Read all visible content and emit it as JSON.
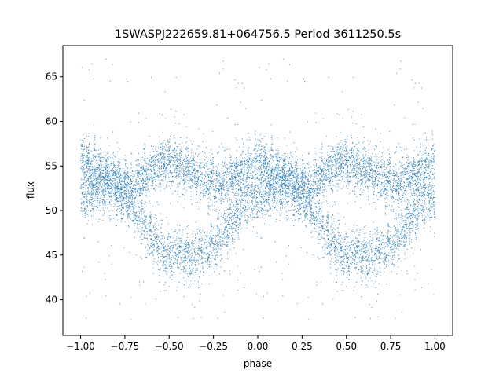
{
  "chart_data": {
    "type": "scatter",
    "title": "1SWASPJ222659.81+064756.5 Period 3611250.5s",
    "xlabel": "phase",
    "ylabel": "flux",
    "xlim": [
      -1.1,
      1.1
    ],
    "ylim": [
      36.0,
      68.5
    ],
    "xticks": [
      -1.0,
      -0.75,
      -0.5,
      -0.25,
      0.0,
      0.25,
      0.5,
      0.75,
      1.0
    ],
    "xtick_labels": [
      "−1.00",
      "−0.75",
      "−0.50",
      "−0.25",
      "0.00",
      "0.25",
      "0.50",
      "0.75",
      "1.00"
    ],
    "yticks": [
      40,
      45,
      50,
      55,
      60,
      65
    ],
    "ytick_labels": [
      "40",
      "45",
      "50",
      "55",
      "60",
      "65"
    ],
    "grid": false,
    "legend": "none",
    "marker_color": "#1f77b4",
    "series": [
      {
        "points_summary": "dense phase-folded light curve; each phase point mirrored at phase-1",
        "profile_phase": [
          0.0,
          0.05,
          0.1,
          0.15,
          0.2,
          0.25,
          0.3,
          0.35,
          0.4,
          0.45,
          0.5,
          0.55,
          0.6,
          0.65,
          0.7,
          0.75,
          0.8,
          0.85,
          0.9,
          0.95,
          1.0
        ],
        "upper_branch_flux": [
          55.5,
          55.0,
          54.5,
          54.0,
          53.5,
          53.0,
          53.0,
          53.5,
          54.5,
          55.5,
          55.5,
          55.0,
          54.5,
          54.0,
          53.5,
          53.0,
          53.0,
          53.5,
          54.0,
          55.0,
          55.5
        ],
        "lower_branch_flux": [
          51.0,
          52.0,
          52.5,
          52.5,
          52.0,
          51.5,
          50.0,
          48.5,
          47.0,
          46.0,
          45.0,
          45.5,
          45.0,
          45.0,
          45.5,
          46.0,
          47.0,
          48.5,
          50.0,
          51.0,
          51.0
        ],
        "scatter_sigma": 1.3,
        "outlier_range": [
          37.5,
          67.0
        ]
      }
    ]
  }
}
